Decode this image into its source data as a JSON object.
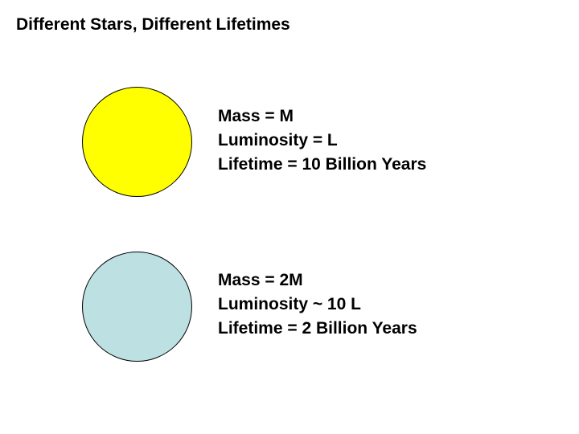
{
  "title": "Different Stars, Different Lifetimes",
  "stars": [
    {
      "color": "#ffff00",
      "icon": "yellow-star-circle",
      "lines": [
        "Mass = M",
        "Luminosity = L",
        "Lifetime = 10 Billion Years"
      ]
    },
    {
      "color": "#bde0e3",
      "icon": "blue-star-circle",
      "lines": [
        "Mass = 2M",
        "Luminosity ~ 10 L",
        "Lifetime = 2 Billion Years"
      ]
    }
  ]
}
